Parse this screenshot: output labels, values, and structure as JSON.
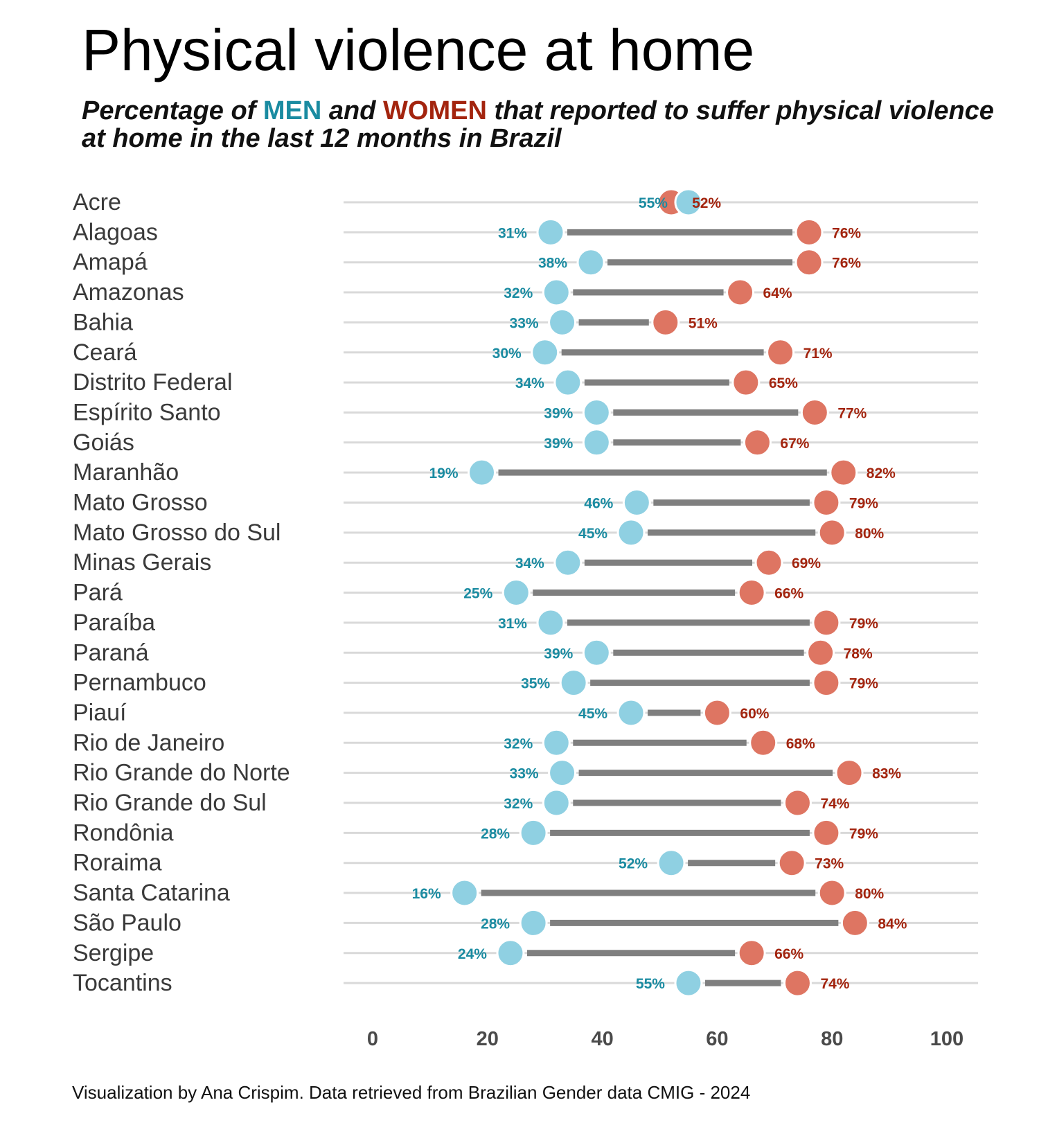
{
  "title": "Physical violence at home",
  "subtitle": {
    "part1": "Percentage of ",
    "men": "MEN",
    "part2": " and ",
    "women": "WOMEN",
    "part3": " that reported to suffer physical violence at home in the last 12 months in Brazil"
  },
  "caption": "Visualization by Ana Crispim. Data retrieved from Brazilian Gender data CMIG - 2024",
  "colors": {
    "men_point": "#8fd0e2",
    "men_label": "#1a8ba1",
    "women_point": "#de7562",
    "women_label": "#a3240e",
    "connector": "#7f7f7f",
    "track": "#d9d9d9",
    "state_label": "#3a3a3a",
    "tick_label": "#4a4a4a"
  },
  "chart_data": {
    "type": "dumbbell",
    "xlim": [
      0,
      100
    ],
    "xticks": [
      0,
      20,
      40,
      60,
      80,
      100
    ],
    "grid": false,
    "series": [
      {
        "name": "MEN",
        "label_suffix": "%"
      },
      {
        "name": "WOMEN",
        "label_suffix": "%"
      }
    ],
    "rows": [
      {
        "state": "Acre",
        "men": 55,
        "women": 52
      },
      {
        "state": "Alagoas",
        "men": 31,
        "women": 76
      },
      {
        "state": "Amapá",
        "men": 38,
        "women": 76
      },
      {
        "state": "Amazonas",
        "men": 32,
        "women": 64
      },
      {
        "state": "Bahia",
        "men": 33,
        "women": 51
      },
      {
        "state": "Ceará",
        "men": 30,
        "women": 71
      },
      {
        "state": "Distrito Federal",
        "men": 34,
        "women": 65
      },
      {
        "state": "Espírito Santo",
        "men": 39,
        "women": 77
      },
      {
        "state": "Goiás",
        "men": 39,
        "women": 67
      },
      {
        "state": "Maranhão",
        "men": 19,
        "women": 82
      },
      {
        "state": "Mato Grosso",
        "men": 46,
        "women": 79
      },
      {
        "state": "Mato Grosso do Sul",
        "men": 45,
        "women": 80
      },
      {
        "state": "Minas Gerais",
        "men": 34,
        "women": 69
      },
      {
        "state": "Pará",
        "men": 25,
        "women": 66
      },
      {
        "state": "Paraíba",
        "men": 31,
        "women": 79
      },
      {
        "state": "Paraná",
        "men": 39,
        "women": 78
      },
      {
        "state": "Pernambuco",
        "men": 35,
        "women": 79
      },
      {
        "state": "Piauí",
        "men": 45,
        "women": 60
      },
      {
        "state": "Rio de Janeiro",
        "men": 32,
        "women": 68
      },
      {
        "state": "Rio Grande do Norte",
        "men": 33,
        "women": 83
      },
      {
        "state": "Rio Grande do Sul",
        "men": 32,
        "women": 74
      },
      {
        "state": "Rondônia",
        "men": 28,
        "women": 79
      },
      {
        "state": "Roraima",
        "men": 52,
        "women": 73
      },
      {
        "state": "Santa Catarina",
        "men": 16,
        "women": 80
      },
      {
        "state": "São Paulo",
        "men": 28,
        "women": 84
      },
      {
        "state": "Sergipe",
        "men": 24,
        "women": 66
      },
      {
        "state": "Tocantins",
        "men": 55,
        "women": 74
      }
    ]
  }
}
